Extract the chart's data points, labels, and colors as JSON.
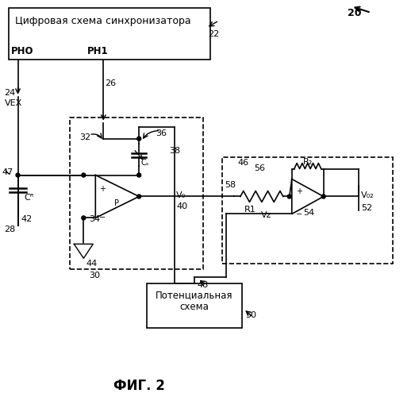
{
  "bg_color": "#ffffff",
  "fig_width": 5.23,
  "fig_height": 5.0,
  "title": "ФИГ. 2",
  "label_20": "20",
  "label_22": "22",
  "label_24": "24",
  "label_26": "26",
  "label_28": "28",
  "label_30": "30",
  "label_32": "32",
  "label_34": "34",
  "label_36": "36",
  "label_38": "38",
  "label_40": "40",
  "label_42": "42",
  "label_44": "44",
  "label_46": "46",
  "label_47": "47",
  "label_48": "48",
  "label_50": "50",
  "label_52": "52",
  "label_54": "54",
  "label_56": "56",
  "label_58": "58",
  "text_box1": "Цифровая схема синхронизатора",
  "text_PHO": "PHO",
  "text_PH1": "PH1",
  "text_VEX": "VЕХ",
  "text_Cs": "Cₛ",
  "text_P": "P",
  "text_VO": "V₀",
  "text_CR": "Cᴿ",
  "text_R1": "R1",
  "text_R2": "R₂",
  "text_VZ": "Vᴢ",
  "text_VO2": "V₀₂",
  "text_box2": "Потенциальная\nсхема",
  "line_color": "#000000"
}
